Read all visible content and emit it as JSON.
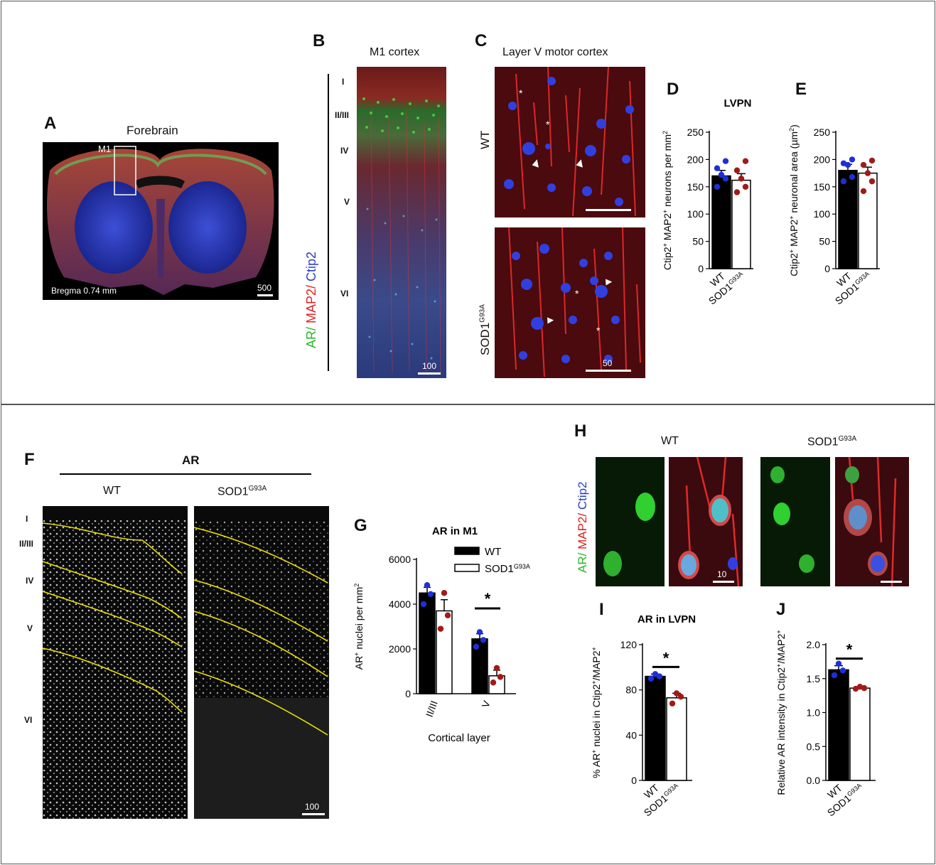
{
  "panels": {
    "A": {
      "label": "A",
      "title": "Forebrain",
      "region": "M1",
      "bregma": "Bregma 0.74 mm",
      "scale": "500"
    },
    "B": {
      "label": "B",
      "title": "M1 cortex",
      "scale": "100",
      "layers": [
        "I",
        "II/III",
        "IV",
        "V",
        "VI"
      ],
      "stain": {
        "ar": "AR/",
        "map2": " MAP2/",
        "ctip2": " Ctip2"
      }
    },
    "C": {
      "label": "C",
      "title": "Layer V motor cortex",
      "wt": "WT",
      "sod": "SOD1",
      "sod_sup": "G93A",
      "scale": "50"
    },
    "F": {
      "label": "F",
      "title": "AR",
      "wt": "WT",
      "sod": "SOD1",
      "sod_sup": "G93A",
      "layers": [
        "I",
        "II/III",
        "IV",
        "V",
        "VI"
      ],
      "scale": "100"
    },
    "H": {
      "label": "H",
      "wt": "WT",
      "sod": "SOD1",
      "sod_sup": "G93A",
      "scale": "10",
      "stain": {
        "ar": "AR/",
        "map2": " MAP2/",
        "ctip2": " Ctip2"
      }
    }
  },
  "colors": {
    "wt_dot": "#1f2fd6",
    "sod_dot": "#a11a1a",
    "ar_green": "#2bb52b",
    "map2_red": "#e02020",
    "ctip2_blue": "#2a3cc8",
    "yellow_line": "#e8e000"
  },
  "chart_data": [
    {
      "id": "D",
      "label": "D",
      "type": "bar",
      "title": "LVPN",
      "ylabel": "Ctip2+ MAP2+ neurons per mm2",
      "ylim": [
        0,
        250
      ],
      "yticks": [
        0,
        50,
        100,
        150,
        200,
        250
      ],
      "categories": [
        "WT",
        "SOD1G93A"
      ],
      "values": [
        170,
        162
      ],
      "errors": [
        10,
        12
      ],
      "points": [
        [
          150,
          165,
          172,
          184,
          197
        ],
        [
          140,
          150,
          165,
          180,
          197
        ]
      ]
    },
    {
      "id": "E",
      "label": "E",
      "type": "bar",
      "title": "",
      "ylabel": "Ctip2+ MAP2+ neuronal area (µm2)",
      "ylim": [
        0,
        250
      ],
      "yticks": [
        0,
        50,
        100,
        150,
        200,
        250
      ],
      "categories": [
        "WT",
        "SOD1G93A"
      ],
      "values": [
        180,
        175
      ],
      "errors": [
        11,
        11
      ],
      "points": [
        [
          160,
          168,
          190,
          193,
          200
        ],
        [
          142,
          160,
          175,
          190,
          198
        ]
      ]
    },
    {
      "id": "G",
      "label": "G",
      "type": "bar",
      "title": "AR in M1",
      "ylabel": "AR+ nuclei per mm2",
      "xlabel": "Cortical layer",
      "ylim": [
        0,
        6000
      ],
      "yticks": [
        0,
        2000,
        4000,
        6000
      ],
      "categories": [
        "II/III",
        "V"
      ],
      "series": [
        {
          "name": "WT",
          "values": [
            4500,
            2450
          ],
          "errors": [
            250,
            230
          ],
          "points": [
            [
              4000,
              4450,
              4850
            ],
            [
              2100,
              2400,
              2750
            ]
          ]
        },
        {
          "name": "SOD1G93A",
          "values": [
            3700,
            800
          ],
          "errors": [
            500,
            250
          ],
          "points": [
            [
              2900,
              3500,
              4500
            ],
            [
              500,
              750,
              1150
            ]
          ]
        }
      ],
      "significance": "*"
    },
    {
      "id": "I",
      "label": "I",
      "type": "bar",
      "title": "AR in LVPN",
      "ylabel": "% AR+ nuclei in Ctip2+/MAP2+",
      "ylim": [
        0,
        120
      ],
      "yticks": [
        0,
        40,
        80,
        120
      ],
      "categories": [
        "WT",
        "SOD1G93A"
      ],
      "values": [
        92,
        73
      ],
      "errors": [
        2,
        4
      ],
      "points": [
        [
          90,
          92,
          94
        ],
        [
          68,
          74,
          77
        ]
      ],
      "significance": "*"
    },
    {
      "id": "J",
      "label": "J",
      "type": "bar",
      "title": "",
      "ylabel": "Relative AR intensity in Ctip2+/MAP2+",
      "ylim": [
        0,
        2.0
      ],
      "yticks": [
        "0.0",
        "0.5",
        "1.0",
        "1.5",
        "2.0"
      ],
      "categories": [
        "WT",
        "SOD1G93A"
      ],
      "values": [
        1.63,
        1.36
      ],
      "errors": [
        0.06,
        0.02
      ],
      "points": [
        [
          1.55,
          1.62,
          1.72
        ],
        [
          1.35,
          1.36,
          1.38
        ]
      ],
      "significance": "*"
    }
  ]
}
